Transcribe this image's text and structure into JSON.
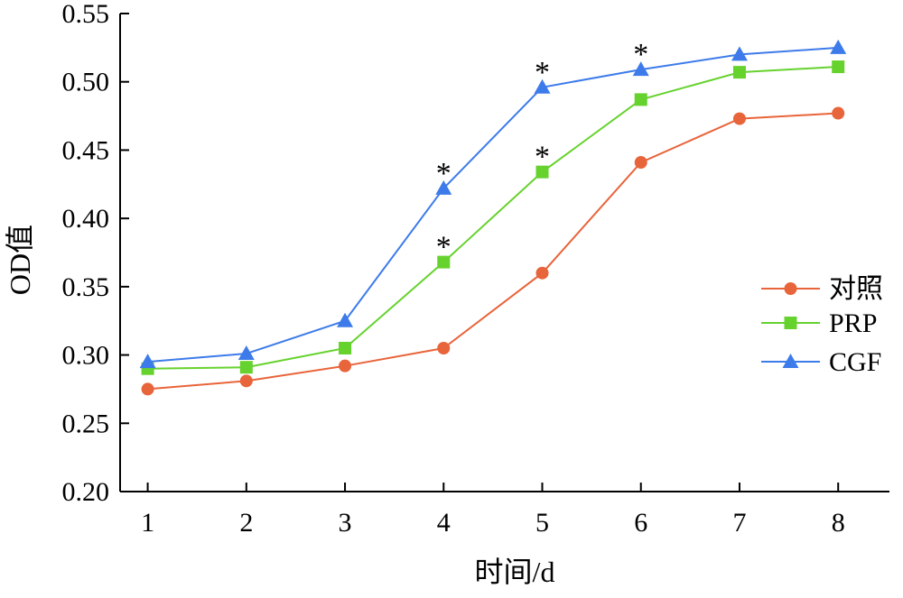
{
  "chart_data": {
    "type": "line",
    "title": "",
    "xlabel": "时间/d",
    "ylabel": "OD值",
    "x": [
      1,
      2,
      3,
      4,
      5,
      6,
      7,
      8
    ],
    "xlim": [
      0.72,
      8.52
    ],
    "ylim": [
      0.2,
      0.55
    ],
    "yticks": [
      "0.20",
      "0.25",
      "0.30",
      "0.35",
      "0.40",
      "0.45",
      "0.50",
      "0.55"
    ],
    "grid": false,
    "legend_position": "right",
    "series": [
      {
        "name": "对照",
        "color": "#E8643A",
        "marker": "circle",
        "values": [
          0.275,
          0.281,
          0.292,
          0.305,
          0.36,
          0.441,
          0.473,
          0.477
        ]
      },
      {
        "name": "PRP",
        "color": "#66D22E",
        "marker": "square",
        "values": [
          0.29,
          0.291,
          0.305,
          0.368,
          0.434,
          0.487,
          0.507,
          0.511
        ]
      },
      {
        "name": "CGF",
        "color": "#3D7BEA",
        "marker": "triangle",
        "values": [
          0.295,
          0.301,
          0.325,
          0.422,
          0.496,
          0.509,
          0.52,
          0.525
        ]
      }
    ],
    "annotations": [
      {
        "text": "*",
        "x": 4,
        "y": 0.422
      },
      {
        "text": "*",
        "x": 4,
        "y": 0.368
      },
      {
        "text": "*",
        "x": 5,
        "y": 0.496
      },
      {
        "text": "*",
        "x": 5,
        "y": 0.434
      },
      {
        "text": "*",
        "x": 6,
        "y": 0.509
      }
    ]
  }
}
